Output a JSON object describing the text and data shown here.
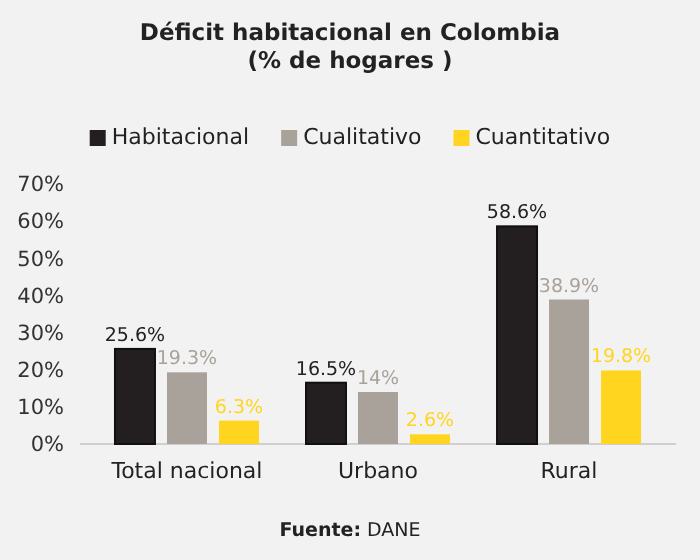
{
  "chart_data": {
    "type": "bar",
    "title": "Déficit habitacional en Colombia\n(% de hogares )",
    "categories": [
      "Total nacional",
      "Urbano",
      "Rural"
    ],
    "series": [
      {
        "name": "Habitacional",
        "color": "#231f20",
        "values": [
          25.6,
          16.5,
          58.6
        ],
        "value_labels": [
          "25.6%",
          "16.5%",
          "58.6%"
        ]
      },
      {
        "name": "Cualitativo",
        "color": "#a8a29a",
        "values": [
          19.3,
          14,
          38.9
        ],
        "value_labels": [
          "19.3%",
          "14%",
          "38.9%"
        ]
      },
      {
        "name": "Cuantitativo",
        "color": "#ffd51f",
        "values": [
          6.3,
          2.6,
          19.8
        ],
        "value_labels": [
          "6.3%",
          "2.6%",
          "19.8%"
        ]
      }
    ],
    "ylim": [
      0,
      70
    ],
    "yticks": [
      {
        "value": 0,
        "label": "0%"
      },
      {
        "value": 10,
        "label": "10%"
      },
      {
        "value": 20,
        "label": "20%"
      },
      {
        "value": 30,
        "label": "30%"
      },
      {
        "value": 40,
        "label": "40%"
      },
      {
        "value": 50,
        "label": "50%"
      },
      {
        "value": 60,
        "label": "60%"
      },
      {
        "value": 70,
        "label": "70%"
      }
    ],
    "grid": false,
    "legend": "top",
    "annotations": [
      "Fuente: DANE"
    ]
  }
}
